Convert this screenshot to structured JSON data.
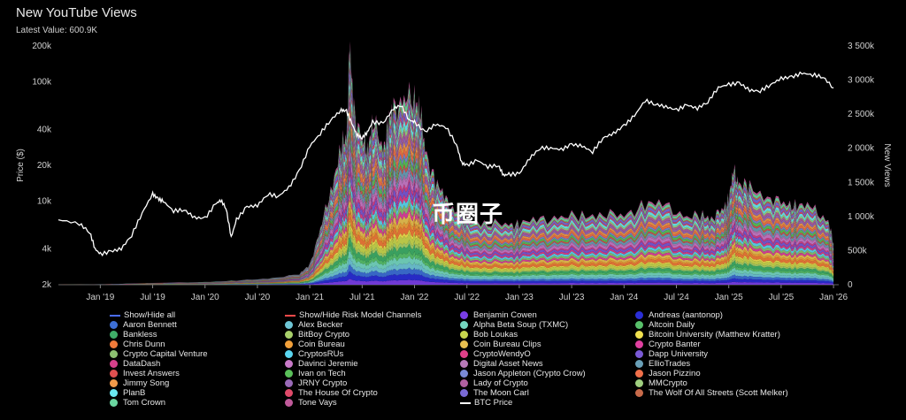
{
  "title": "New YouTube Views",
  "subtitle": "Latest Value: 600.9K",
  "watermark": "币圈子",
  "chart_data": {
    "type": "area",
    "title": "New YouTube Views",
    "subtitle": "Latest Value: 600.9K",
    "y_left": {
      "label": "Price ($)",
      "scale": "log",
      "ticks": [
        "2k",
        "4k",
        "10k",
        "20k",
        "40k",
        "100k",
        "200k"
      ],
      "tick_values": [
        2000,
        4000,
        10000,
        20000,
        40000,
        100000,
        200000
      ],
      "range": [
        2000,
        200000
      ]
    },
    "y_right": {
      "label": "New Views",
      "ticks": [
        "0",
        "500k",
        "1 000k",
        "1 500k",
        "2 000k",
        "2 500k",
        "3 000k",
        "3 500k"
      ],
      "tick_values": [
        0,
        500000,
        1000000,
        1500000,
        2000000,
        2500000,
        3000000,
        3500000
      ],
      "range": [
        0,
        3500000
      ]
    },
    "x_ticks": [
      "Jan '19",
      "Jul '19",
      "Jan '20",
      "Jul '20",
      "Jan '21",
      "Jul '21",
      "Jan '22",
      "Jul '22",
      "Jan '23",
      "Jul '23",
      "Jan '24",
      "Jul '24",
      "Jan '25",
      "Jul '25",
      "Jan '26"
    ],
    "x_tick_dates": [
      2019.0,
      2019.5,
      2020.0,
      2020.5,
      2021.0,
      2021.5,
      2022.0,
      2022.5,
      2023.0,
      2023.5,
      2024.0,
      2024.5,
      2025.0,
      2025.5,
      2026.0
    ],
    "x_range": [
      2018.6,
      2026.05
    ],
    "views_total": {
      "x": [
        2018.6,
        2019.0,
        2019.5,
        2020.0,
        2020.3,
        2020.6,
        2020.9,
        2021.0,
        2021.1,
        2021.2,
        2021.3,
        2021.35,
        2021.38,
        2021.42,
        2021.5,
        2021.55,
        2021.6,
        2021.7,
        2021.75,
        2021.8,
        2021.9,
        2022.0,
        2022.05,
        2022.1,
        2022.2,
        2022.3,
        2022.4,
        2022.5,
        2022.7,
        2022.9,
        2023.0,
        2023.2,
        2023.4,
        2023.6,
        2023.8,
        2024.0,
        2024.2,
        2024.4,
        2024.6,
        2024.75,
        2024.85,
        2024.95,
        2025.0,
        2025.05,
        2025.1,
        2025.2,
        2025.4,
        2025.55,
        2025.65,
        2025.8,
        2025.95,
        2026.0
      ],
      "y": [
        0,
        5000,
        25000,
        40000,
        60000,
        90000,
        150000,
        300000,
        800000,
        1400000,
        2000000,
        2200000,
        3450000,
        2600000,
        2100000,
        2000000,
        2400000,
        2000000,
        2350000,
        2600000,
        2700000,
        2750000,
        2600000,
        2000000,
        1500000,
        1250000,
        1050000,
        950000,
        900000,
        880000,
        900000,
        950000,
        1000000,
        1000000,
        1050000,
        1000000,
        1200000,
        1150000,
        1000000,
        1000000,
        1000000,
        1100000,
        1300000,
        1650000,
        1500000,
        1400000,
        1300000,
        1150000,
        1200000,
        1100000,
        950000,
        600900
      ]
    },
    "btc_price": {
      "name": "BTC Price",
      "x": [
        2018.6,
        2018.8,
        2018.9,
        2018.95,
        2019.0,
        2019.1,
        2019.2,
        2019.3,
        2019.4,
        2019.5,
        2019.55,
        2019.6,
        2019.7,
        2019.8,
        2019.9,
        2020.0,
        2020.1,
        2020.15,
        2020.2,
        2020.25,
        2020.3,
        2020.4,
        2020.5,
        2020.6,
        2020.7,
        2020.8,
        2020.9,
        2021.0,
        2021.1,
        2021.2,
        2021.3,
        2021.35,
        2021.4,
        2021.45,
        2021.5,
        2021.55,
        2021.6,
        2021.7,
        2021.8,
        2021.87,
        2021.95,
        2022.0,
        2022.1,
        2022.2,
        2022.3,
        2022.4,
        2022.45,
        2022.5,
        2022.6,
        2022.7,
        2022.8,
        2022.85,
        2022.9,
        2023.0,
        2023.1,
        2023.2,
        2023.3,
        2023.4,
        2023.5,
        2023.6,
        2023.7,
        2023.8,
        2023.9,
        2024.0,
        2024.1,
        2024.2,
        2024.3,
        2024.4,
        2024.5,
        2024.6,
        2024.7,
        2024.8,
        2024.9,
        2025.0,
        2025.1,
        2025.2,
        2025.3,
        2025.4,
        2025.5,
        2025.6,
        2025.7,
        2025.8,
        2025.9,
        2026.0
      ],
      "y": [
        7000,
        6500,
        5500,
        4000,
        3600,
        3800,
        4000,
        5200,
        8000,
        11500,
        10500,
        10000,
        8300,
        8500,
        7300,
        7200,
        9500,
        10200,
        8800,
        5000,
        7000,
        9000,
        9200,
        11500,
        11000,
        13000,
        18000,
        29000,
        37000,
        48000,
        58000,
        57000,
        45000,
        36000,
        34000,
        38000,
        46000,
        45000,
        60000,
        64000,
        48000,
        46000,
        38000,
        44000,
        42000,
        30000,
        21000,
        20000,
        22000,
        19500,
        20000,
        16500,
        16800,
        17000,
        23000,
        28000,
        28000,
        27000,
        30000,
        29000,
        26000,
        34000,
        37000,
        43000,
        52000,
        70000,
        65000,
        62000,
        58000,
        64000,
        60000,
        68000,
        90000,
        95000,
        98000,
        85000,
        84000,
        95000,
        107000,
        110000,
        118000,
        115000,
        110000,
        89000
      ]
    },
    "legend": [
      {
        "name": "Show/Hide all",
        "color": "#4a6cff",
        "style": "line"
      },
      {
        "name": "Show/Hide Risk Model Channels",
        "color": "#ff4a4a",
        "style": "line"
      },
      {
        "name": "Benjamin Cowen",
        "color": "#7a3ee6",
        "style": "dot"
      },
      {
        "name": "Andreas (aantonop)",
        "color": "#2a2ed6",
        "style": "dot"
      },
      {
        "name": "Aaron Bennett",
        "color": "#3d6fd6",
        "style": "dot"
      },
      {
        "name": "Alex Becker",
        "color": "#6fc6d6",
        "style": "dot"
      },
      {
        "name": "Alpha Beta Soup (TXMC)",
        "color": "#74d6c0",
        "style": "dot"
      },
      {
        "name": "Altcoin Daily",
        "color": "#58c06a",
        "style": "dot"
      },
      {
        "name": "Bankless",
        "color": "#3fae68",
        "style": "dot"
      },
      {
        "name": "BitBoy Crypto",
        "color": "#a8d06a",
        "style": "dot"
      },
      {
        "name": "Bob Loukas",
        "color": "#c8d64e",
        "style": "dot"
      },
      {
        "name": "Bitcoin University (Matthew Kratter)",
        "color": "#f0e04e",
        "style": "dot"
      },
      {
        "name": "Chris Dunn",
        "color": "#f07a3a",
        "style": "dot"
      },
      {
        "name": "Coin Bureau",
        "color": "#f2a03a",
        "style": "dot"
      },
      {
        "name": "Coin Bureau Clips",
        "color": "#e8c050",
        "style": "dot"
      },
      {
        "name": "Crypto Banter",
        "color": "#e040a0",
        "style": "dot"
      },
      {
        "name": "Crypto Capital Venture",
        "color": "#8cc070",
        "style": "dot"
      },
      {
        "name": "CryptosRUs",
        "color": "#5ad6f0",
        "style": "dot"
      },
      {
        "name": "CryptoWendyO",
        "color": "#e0408a",
        "style": "dot"
      },
      {
        "name": "Dapp University",
        "color": "#7a5ad6",
        "style": "dot"
      },
      {
        "name": "DataDash",
        "color": "#d6408a",
        "style": "dot"
      },
      {
        "name": "Davinci Jeremie",
        "color": "#c87ac8",
        "style": "dot"
      },
      {
        "name": "Digital Asset News",
        "color": "#b87ab8",
        "style": "dot"
      },
      {
        "name": "EllioTrades",
        "color": "#6aa0b8",
        "style": "dot"
      },
      {
        "name": "Invest Answers",
        "color": "#e05050",
        "style": "dot"
      },
      {
        "name": "Ivan on Tech",
        "color": "#5ac05a",
        "style": "dot"
      },
      {
        "name": "Jason Appleton (Crypto Crow)",
        "color": "#7a8ad6",
        "style": "dot"
      },
      {
        "name": "Jason Pizzino",
        "color": "#f0704a",
        "style": "dot"
      },
      {
        "name": "Jimmy Song",
        "color": "#f09a4a",
        "style": "dot"
      },
      {
        "name": "JRNY Crypto",
        "color": "#9a6ab8",
        "style": "dot"
      },
      {
        "name": "Lady of Crypto",
        "color": "#b060a0",
        "style": "dot"
      },
      {
        "name": "MMCrypto",
        "color": "#a0d080",
        "style": "dot"
      },
      {
        "name": "PlanB",
        "color": "#6ae8f0",
        "style": "dot"
      },
      {
        "name": "The House Of Crypto",
        "color": "#e04a6a",
        "style": "dot"
      },
      {
        "name": "The Moon Carl",
        "color": "#7a6ad6",
        "style": "dot"
      },
      {
        "name": "The Wolf Of All Streets (Scott Melker)",
        "color": "#c86a4a",
        "style": "dot"
      },
      {
        "name": "Tom Crown",
        "color": "#6ad6a0",
        "style": "dot"
      },
      {
        "name": "Tone Vays",
        "color": "#c05a9a",
        "style": "dot"
      },
      {
        "name": "BTC Price",
        "color": "#ffffff",
        "style": "line"
      }
    ]
  }
}
